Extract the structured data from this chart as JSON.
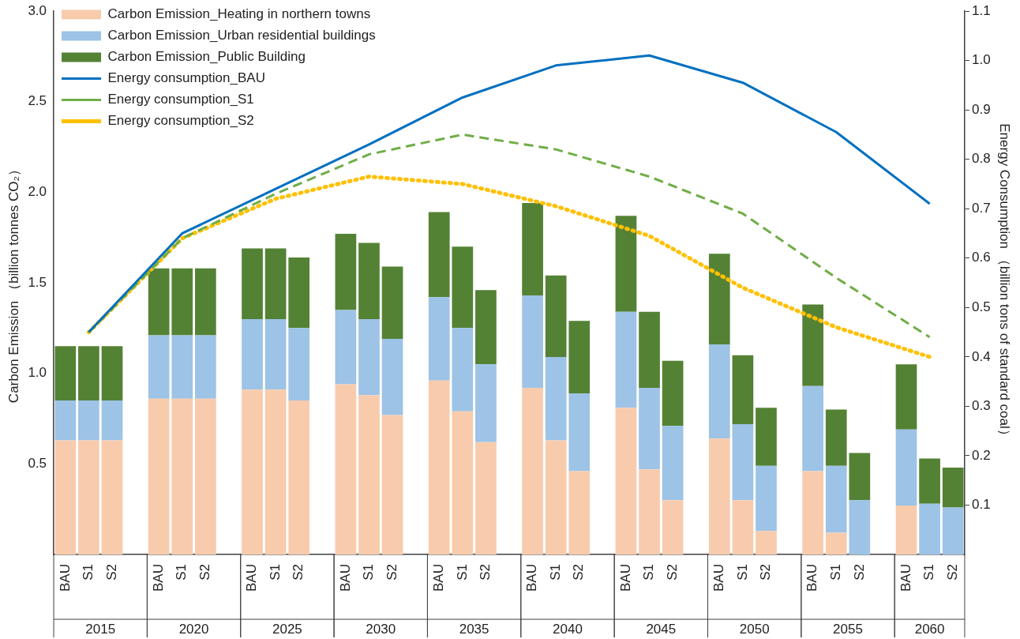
{
  "chart_data": {
    "type": "bar",
    "stacked": true,
    "legend": "top left",
    "grid": false,
    "categories": [
      "BAU",
      "S1",
      "S2",
      null,
      "BAU",
      "S1",
      "S2",
      null,
      "BAU",
      "S1",
      "S2",
      null,
      "BAU",
      "S1",
      "S2",
      null,
      "BAU",
      "S1",
      "S2",
      null,
      "BAU",
      "S1",
      "S2",
      null,
      "BAU",
      "S1",
      "S2",
      null,
      "BAU",
      "S1",
      "S2",
      null,
      "BAU",
      "S1",
      "S2",
      null,
      "BAU",
      "S1",
      "S2"
    ],
    "ylabel": "Carbon Emission （billion tonnes CO₂）",
    "y2label": "Energy Consumption （billion tons of standard coal）",
    "ylim": [
      0,
      3
    ],
    "yticks": [
      0.5,
      {
        "value": 1,
        "label": "1.0"
      },
      1.5,
      {
        "value": 2,
        "label": "2.0"
      },
      2.5,
      {
        "value": 3,
        "label": "3.0"
      }
    ],
    "y2lim": [
      0,
      1.1
    ],
    "y2ticks": [
      0.1,
      0.2,
      0.3,
      0.4,
      0.5,
      0.6,
      0.7,
      0.8,
      0.9,
      {
        "value": 1,
        "label": "1.0"
      },
      1.1
    ],
    "annotations": [
      "2015",
      "2020",
      "2025",
      "2030",
      "2035",
      "2040",
      "2045",
      "2050",
      "2055",
      "2060"
    ],
    "series": [
      {
        "name": "Carbon Emission_Heating in northern towns",
        "color": "#f8cbad",
        "values": [
          0.63,
          0.63,
          0.63,
          null,
          0.86,
          0.86,
          0.86,
          null,
          0.91,
          0.91,
          0.85,
          null,
          0.94,
          0.88,
          0.77,
          null,
          0.96,
          0.79,
          0.62,
          null,
          0.92,
          0.63,
          0.46,
          null,
          0.81,
          0.47,
          0.3,
          null,
          0.64,
          0.3,
          0.13,
          null,
          0.46,
          0.12,
          0,
          null,
          0.27,
          0,
          0
        ]
      },
      {
        "name": "Carbon Emission_Urban residential buildings",
        "color": "#9dc3e6",
        "values": [
          0.22,
          0.22,
          0.22,
          null,
          0.35,
          0.35,
          0.35,
          null,
          0.39,
          0.39,
          0.4,
          null,
          0.41,
          0.42,
          0.42,
          null,
          0.46,
          0.46,
          0.43,
          null,
          0.51,
          0.46,
          0.43,
          null,
          0.53,
          0.45,
          0.41,
          null,
          0.52,
          0.42,
          0.36,
          null,
          0.47,
          0.37,
          0.3,
          null,
          0.42,
          0.28,
          0.26
        ]
      },
      {
        "name": "Carbon Emission_Public Building",
        "color": "#548235",
        "values": [
          0.3,
          0.3,
          0.3,
          null,
          0.37,
          0.37,
          0.37,
          null,
          0.39,
          0.39,
          0.39,
          null,
          0.42,
          0.42,
          0.4,
          null,
          0.47,
          0.45,
          0.41,
          null,
          0.51,
          0.45,
          0.4,
          null,
          0.53,
          0.42,
          0.36,
          null,
          0.5,
          0.38,
          0.32,
          null,
          0.45,
          0.31,
          0.26,
          null,
          0.36,
          0.25,
          0.22
        ]
      },
      {
        "name": "Energy consumption_BAU",
        "type": "line",
        "axis": "y2",
        "line_style": "solid",
        "color": "#0070c0",
        "values": [
          null,
          0.45,
          null,
          null,
          null,
          0.65,
          null,
          null,
          null,
          0.74,
          null,
          null,
          null,
          0.83,
          null,
          null,
          null,
          0.925,
          null,
          null,
          null,
          0.99,
          null,
          null,
          null,
          1.01,
          null,
          null,
          null,
          0.955,
          null,
          null,
          null,
          0.855,
          null,
          null,
          null,
          0.71,
          null
        ]
      },
      {
        "name": "Energy consumption_S1",
        "type": "line",
        "axis": "y2",
        "line_style": "dashed",
        "color": "#70ad47",
        "values": [
          null,
          0.45,
          null,
          null,
          null,
          0.64,
          null,
          null,
          null,
          0.73,
          null,
          null,
          null,
          0.81,
          null,
          null,
          null,
          0.85,
          null,
          null,
          null,
          0.82,
          null,
          null,
          null,
          0.765,
          null,
          null,
          null,
          0.69,
          null,
          null,
          null,
          0.56,
          null,
          null,
          null,
          0.44,
          null
        ]
      },
      {
        "name": "Energy consumption_S2",
        "type": "line",
        "axis": "y2",
        "line_style": "dotted",
        "color": "#ffc000",
        "values": [
          null,
          0.45,
          null,
          null,
          null,
          0.64,
          null,
          null,
          null,
          0.72,
          null,
          null,
          null,
          0.765,
          null,
          null,
          null,
          0.75,
          null,
          null,
          null,
          0.705,
          null,
          null,
          null,
          0.645,
          null,
          null,
          null,
          0.54,
          null,
          null,
          null,
          0.46,
          null,
          null,
          null,
          0.4,
          null
        ]
      }
    ]
  }
}
